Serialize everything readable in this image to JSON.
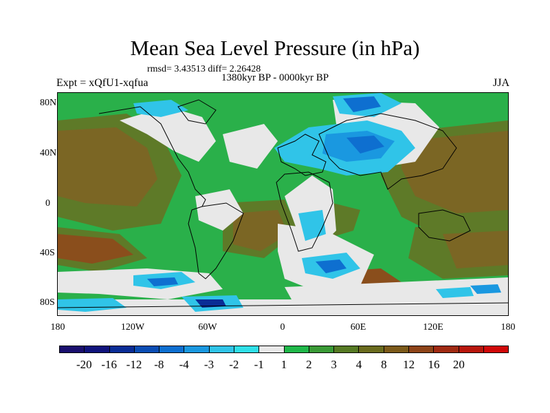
{
  "title": "Mean Sea Level Pressure (in hPa)",
  "stats": "rmsd= 3.43513 diff= 2.26428",
  "period": "1380kyr BP - 0000kyr BP",
  "experiment": "Expt = xQfU1-xqfua",
  "season": "JJA",
  "y_ticks": [
    "80N",
    "40N",
    "0",
    "40S",
    "80S"
  ],
  "x_ticks": [
    "180",
    "120W",
    "60W",
    "0",
    "60E",
    "120E",
    "180"
  ],
  "legend": {
    "colors": [
      "#1a0f6e",
      "#10137c",
      "#0a2d96",
      "#0b4db4",
      "#0e6fd0",
      "#1a98e0",
      "#30c4e8",
      "#30e0e8",
      "#e8e8e8",
      "#20b84a",
      "#3a9a36",
      "#567a24",
      "#6a6b1e",
      "#7c5a1a",
      "#8e4418",
      "#a02a12",
      "#b8160c",
      "#d00808"
    ],
    "labels": [
      "-20",
      "-16",
      "-12",
      "-8",
      "-4",
      "-3",
      "-2",
      "-1",
      "1",
      "2",
      "3",
      "4",
      "8",
      "12",
      "16",
      "20"
    ]
  },
  "map_colors": {
    "ocean_brown": "#7b6624",
    "olive": "#5e7a28",
    "green": "#2ab04a",
    "neutral": "#e8e8e8",
    "cyan": "#30c4e8",
    "blue": "#0e6fd0",
    "deep_blue": "#0a2d96",
    "coast": "#000000"
  }
}
